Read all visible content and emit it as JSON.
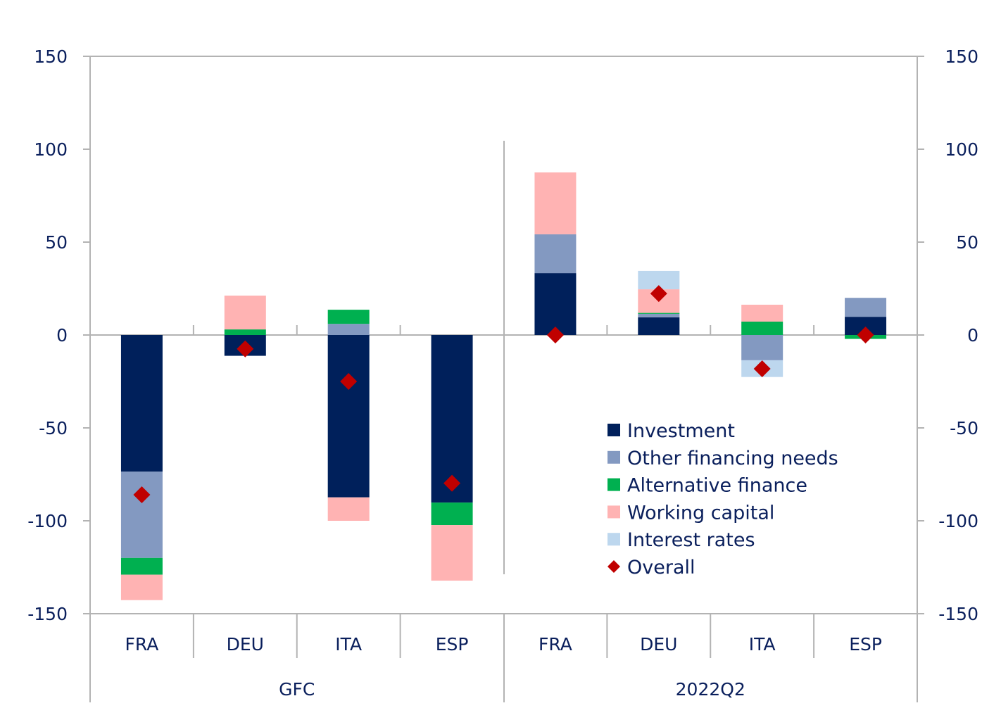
{
  "chart_data": {
    "type": "bar",
    "stacked": true,
    "title": "",
    "xlabel": "",
    "ylabel": "",
    "ylim": [
      -150,
      150
    ],
    "yticks": [
      150,
      100,
      50,
      0,
      -50,
      -100,
      -150
    ],
    "ytick_labels": [
      "150",
      "100",
      "50",
      "0",
      "-50",
      "-100",
      "-150"
    ],
    "grid": false,
    "legend_position": "bottom-right (inside)",
    "groups": [
      {
        "label": "GFC",
        "categories": [
          "FRA",
          "DEU",
          "ITA",
          "ESP"
        ]
      },
      {
        "label": "2022Q2",
        "categories": [
          "FRA",
          "DEU",
          "ITA",
          "ESP"
        ]
      }
    ],
    "categories": [
      "FRA",
      "DEU",
      "ITA",
      "ESP",
      "FRA",
      "DEU",
      "ITA",
      "ESP"
    ],
    "series": [
      {
        "name": "Investment",
        "color": "#00205b",
        "values": [
          -73.5,
          -11.2,
          -87.4,
          -90.2,
          33.3,
          9.5,
          0,
          9.8
        ]
      },
      {
        "name": "Other financing needs",
        "color": "#8399c1",
        "values": [
          -46.5,
          0,
          6,
          0,
          20.9,
          1.9,
          -13.6,
          10.2
        ]
      },
      {
        "name": "Alternative finance",
        "color": "#00b050",
        "values": [
          -9,
          3,
          7.6,
          -12.1,
          0,
          0.5,
          7.2,
          -2.1
        ]
      },
      {
        "name": "Working capital",
        "color": "#ffb3b3",
        "values": [
          -13.7,
          18.2,
          -12.6,
          -29.9,
          33.3,
          12.7,
          9.1,
          0
        ]
      },
      {
        "name": "Interest rates",
        "color": "#bdd7ee",
        "values": [
          0,
          0,
          0,
          0,
          0,
          9.9,
          -9,
          0
        ]
      },
      {
        "name": "Overall",
        "type": "marker",
        "marker": "diamond",
        "color": "#c00000",
        "values": [
          -86,
          -7.5,
          -25,
          -79.8,
          0,
          22.3,
          -18.2,
          0
        ]
      }
    ]
  }
}
